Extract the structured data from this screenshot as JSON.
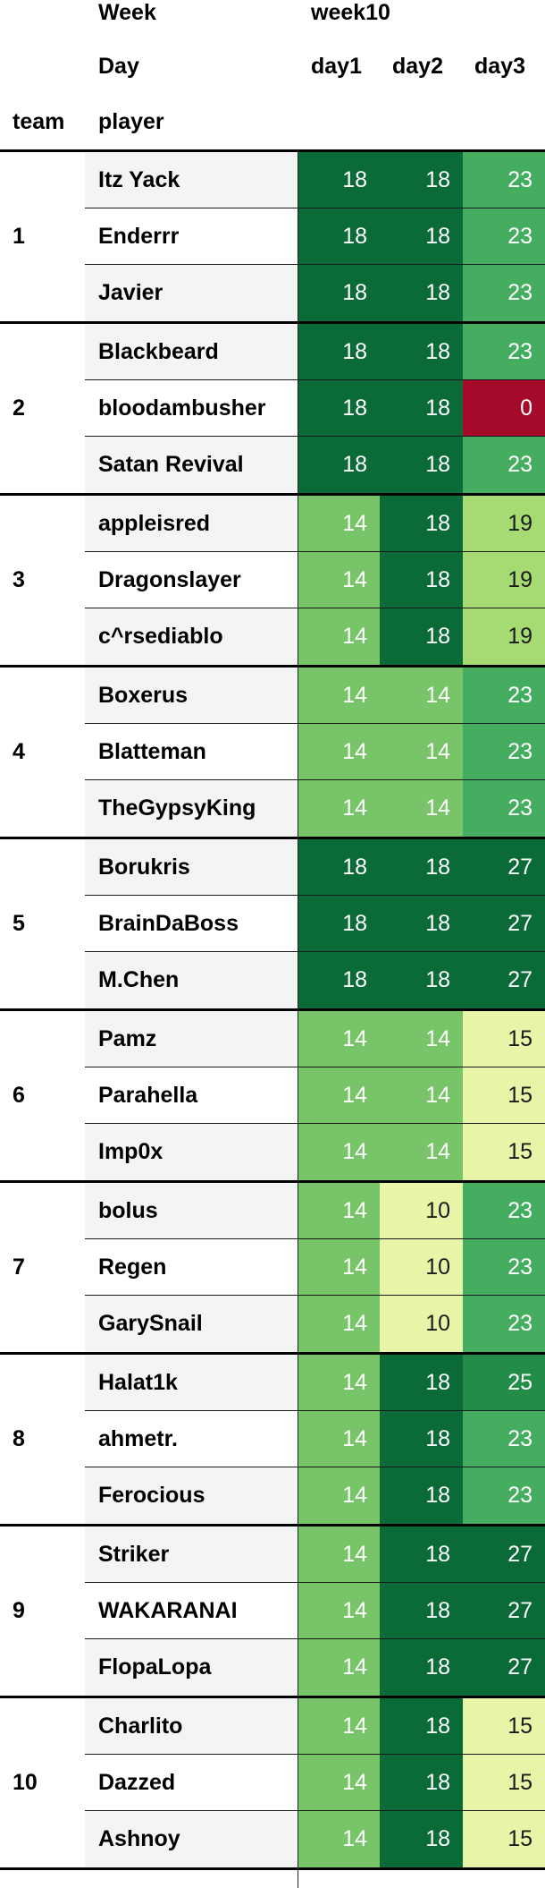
{
  "header": {
    "week_label": "Week",
    "week_value": "week10",
    "day_label": "Day",
    "days": [
      "day1",
      "day2",
      "day3"
    ],
    "team_label": "team",
    "player_label": "player"
  },
  "colors": {
    "10": "#e6f5a8",
    "14": "#78c468",
    "15": "#e6f5a8",
    "18": "#0a6a38",
    "19": "#a6da72",
    "23": "#45ad5f",
    "25": "#238c49",
    "27": "#0a6a38",
    "0": "#a50a2b"
  },
  "teams": [
    {
      "team": "1",
      "players": [
        {
          "name": "Itz Yack",
          "scores": [
            18,
            18,
            23
          ]
        },
        {
          "name": "Enderrr",
          "scores": [
            18,
            18,
            23
          ]
        },
        {
          "name": "Javier",
          "scores": [
            18,
            18,
            23
          ]
        }
      ]
    },
    {
      "team": "2",
      "players": [
        {
          "name": "Blackbeard",
          "scores": [
            18,
            18,
            23
          ]
        },
        {
          "name": "bloodambusher",
          "scores": [
            18,
            18,
            0
          ]
        },
        {
          "name": "Satan Revival",
          "scores": [
            18,
            18,
            23
          ]
        }
      ]
    },
    {
      "team": "3",
      "players": [
        {
          "name": "appleisred",
          "scores": [
            14,
            18,
            19
          ]
        },
        {
          "name": "Dragonslayer",
          "scores": [
            14,
            18,
            19
          ]
        },
        {
          "name": "c^rsediablo",
          "scores": [
            14,
            18,
            19
          ]
        }
      ]
    },
    {
      "team": "4",
      "players": [
        {
          "name": "Boxerus",
          "scores": [
            14,
            14,
            23
          ]
        },
        {
          "name": "Blatteman",
          "scores": [
            14,
            14,
            23
          ]
        },
        {
          "name": "TheGypsyKing",
          "scores": [
            14,
            14,
            23
          ]
        }
      ]
    },
    {
      "team": "5",
      "players": [
        {
          "name": "Borukris",
          "scores": [
            18,
            18,
            27
          ]
        },
        {
          "name": "BrainDaBoss",
          "scores": [
            18,
            18,
            27
          ]
        },
        {
          "name": "M.Chen",
          "scores": [
            18,
            18,
            27
          ]
        }
      ]
    },
    {
      "team": "6",
      "players": [
        {
          "name": "Pamz",
          "scores": [
            14,
            14,
            15
          ]
        },
        {
          "name": "Parahella",
          "scores": [
            14,
            14,
            15
          ]
        },
        {
          "name": "Imp0x",
          "scores": [
            14,
            14,
            15
          ]
        }
      ]
    },
    {
      "team": "7",
      "players": [
        {
          "name": "bolus",
          "scores": [
            14,
            10,
            23
          ]
        },
        {
          "name": "Regen",
          "scores": [
            14,
            10,
            23
          ]
        },
        {
          "name": "GarySnail",
          "scores": [
            14,
            10,
            23
          ]
        }
      ]
    },
    {
      "team": "8",
      "players": [
        {
          "name": "Halat1k",
          "scores": [
            14,
            18,
            25
          ]
        },
        {
          "name": "ahmetr.",
          "scores": [
            14,
            18,
            23
          ]
        },
        {
          "name": "Ferocious",
          "scores": [
            14,
            18,
            23
          ]
        }
      ]
    },
    {
      "team": "9",
      "players": [
        {
          "name": "Striker",
          "scores": [
            14,
            18,
            27
          ]
        },
        {
          "name": "WAKARANAI",
          "scores": [
            14,
            18,
            27
          ]
        },
        {
          "name": "FlopaLopa",
          "scores": [
            14,
            18,
            27
          ]
        }
      ]
    },
    {
      "team": "10",
      "players": [
        {
          "name": "Charlito",
          "scores": [
            14,
            18,
            15
          ]
        },
        {
          "name": "Dazzed",
          "scores": [
            14,
            18,
            15
          ]
        },
        {
          "name": "Ashnoy",
          "scores": [
            14,
            18,
            15
          ]
        }
      ]
    }
  ]
}
